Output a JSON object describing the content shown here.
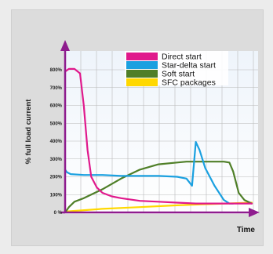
{
  "chart_data": {
    "type": "line",
    "title": "",
    "xlabel": "Time",
    "ylabel": "% full load current",
    "ylim": [
      0,
      800
    ],
    "yticks": [
      0,
      100,
      200,
      300,
      400,
      500,
      600,
      700,
      800
    ],
    "ytick_labels": [
      "0 %",
      "100%",
      "200%",
      "300%",
      "400%",
      "500%",
      "600%",
      "700%",
      "800%"
    ],
    "xlim": [
      0,
      100
    ],
    "grid": true,
    "legend_position": "top-right",
    "series": [
      {
        "name": "Direct start",
        "color": "#e0198c",
        "x": [
          0,
          2,
          5,
          8,
          10,
          12,
          14,
          17,
          20,
          25,
          30,
          40,
          50,
          60,
          70,
          80,
          90,
          100
        ],
        "y": [
          790,
          805,
          805,
          780,
          600,
          350,
          200,
          140,
          110,
          90,
          80,
          65,
          60,
          55,
          50,
          50,
          50,
          50
        ]
      },
      {
        "name": "Star-delta start",
        "color": "#1aa0e0",
        "x": [
          0,
          1,
          3,
          10,
          20,
          30,
          40,
          50,
          60,
          65,
          68,
          70,
          72,
          75,
          80,
          85,
          88,
          90
        ],
        "y": [
          240,
          225,
          215,
          210,
          210,
          205,
          205,
          205,
          200,
          190,
          150,
          395,
          350,
          250,
          150,
          70,
          50,
          50
        ]
      },
      {
        "name": "Soft start",
        "color": "#4f7f28",
        "x": [
          0,
          2,
          5,
          10,
          20,
          30,
          40,
          50,
          60,
          65,
          70,
          75,
          80,
          85,
          88,
          90,
          93,
          96,
          100
        ],
        "y": [
          0,
          30,
          60,
          80,
          130,
          190,
          240,
          270,
          280,
          285,
          285,
          285,
          285,
          285,
          280,
          230,
          110,
          70,
          50
        ]
      },
      {
        "name": "SFC packages",
        "color": "#ffd800",
        "x": [
          0,
          20,
          40,
          60,
          80,
          100
        ],
        "y": [
          5,
          20,
          30,
          40,
          48,
          55
        ]
      }
    ]
  }
}
